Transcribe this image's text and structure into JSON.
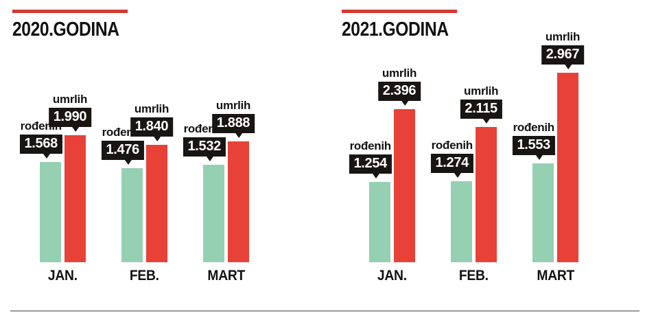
{
  "colors": {
    "births_bar": "#95d0b3",
    "deaths_bar": "#e84138",
    "accent_line": "#d13a33",
    "label_box": "#181512",
    "divider": "#9b9b9b"
  },
  "chart_data": [
    {
      "type": "bar",
      "title": "2020.GODINA",
      "categories": [
        "JAN.",
        "FEB.",
        "MART"
      ],
      "legend_position": "none",
      "grid": false,
      "series": [
        {
          "name": "rođenih",
          "color": "#95d0b3",
          "values": [
            1568,
            1476,
            1532
          ],
          "labels": [
            "1.568",
            "1.476",
            "1.532"
          ]
        },
        {
          "name": "umrlih",
          "color": "#e84138",
          "values": [
            1990,
            1840,
            1888
          ],
          "labels": [
            "1.990",
            "1.840",
            "1.888"
          ]
        }
      ]
    },
    {
      "type": "bar",
      "title": "2021.GODINA",
      "categories": [
        "JAN.",
        "FEB.",
        "MART"
      ],
      "legend_position": "none",
      "grid": false,
      "series": [
        {
          "name": "rođenih",
          "color": "#95d0b3",
          "values": [
            1254,
            1274,
            1553
          ],
          "labels": [
            "1.254",
            "1.274",
            "1.553"
          ]
        },
        {
          "name": "umrlih",
          "color": "#e84138",
          "values": [
            2396,
            2115,
            2967
          ],
          "labels": [
            "2.396",
            "2.115",
            "2.967"
          ]
        }
      ]
    }
  ]
}
